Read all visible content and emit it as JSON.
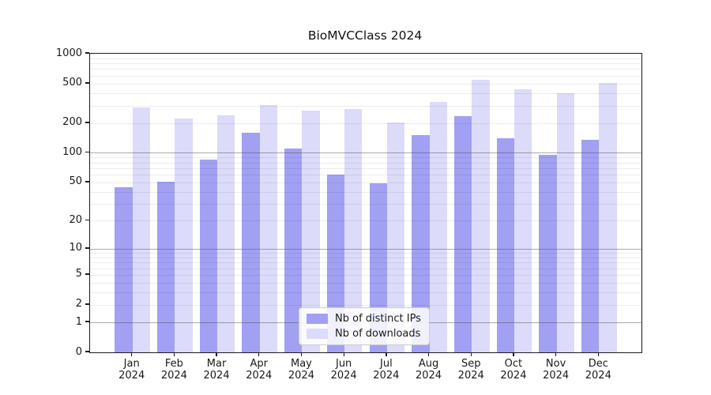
{
  "title": "BioMVCClass 2024",
  "legend": {
    "items": [
      {
        "label": "Nb of distinct IPs",
        "color": "#a2a0f2"
      },
      {
        "label": "Nb of downloads",
        "color": "#dcdbf9"
      }
    ]
  },
  "chart_data": {
    "type": "bar",
    "title": "BioMVCClass 2024",
    "categories": [
      "Jan",
      "Feb",
      "Mar",
      "Apr",
      "May",
      "Jun",
      "Jul",
      "Aug",
      "Sep",
      "Oct",
      "Nov",
      "Dec"
    ],
    "category_year": "2024",
    "series": [
      {
        "name": "Nb of distinct IPs",
        "color": "#a2a0f2",
        "values": [
          45,
          51,
          86,
          160,
          110,
          60,
          49,
          150,
          235,
          140,
          95,
          135
        ]
      },
      {
        "name": "Nb of downloads",
        "color": "#dcdbf9",
        "values": [
          289,
          224,
          240,
          306,
          268,
          276,
          204,
          326,
          544,
          437,
          399,
          508
        ]
      }
    ],
    "y_scale": "log1p",
    "ylim": [
      0,
      1000
    ],
    "y_ticks": [
      0,
      1,
      2,
      5,
      10,
      20,
      50,
      100,
      200,
      500,
      1000
    ],
    "major_gridlines": [
      1,
      10,
      100
    ],
    "minor_gridlines": [
      2,
      3,
      4,
      5,
      6,
      7,
      8,
      9,
      20,
      30,
      40,
      50,
      60,
      70,
      80,
      90,
      200,
      300,
      400,
      500,
      600,
      700,
      800,
      900
    ],
    "xlabel": "",
    "ylabel": "",
    "grid": true,
    "legend_position": "lower center"
  }
}
